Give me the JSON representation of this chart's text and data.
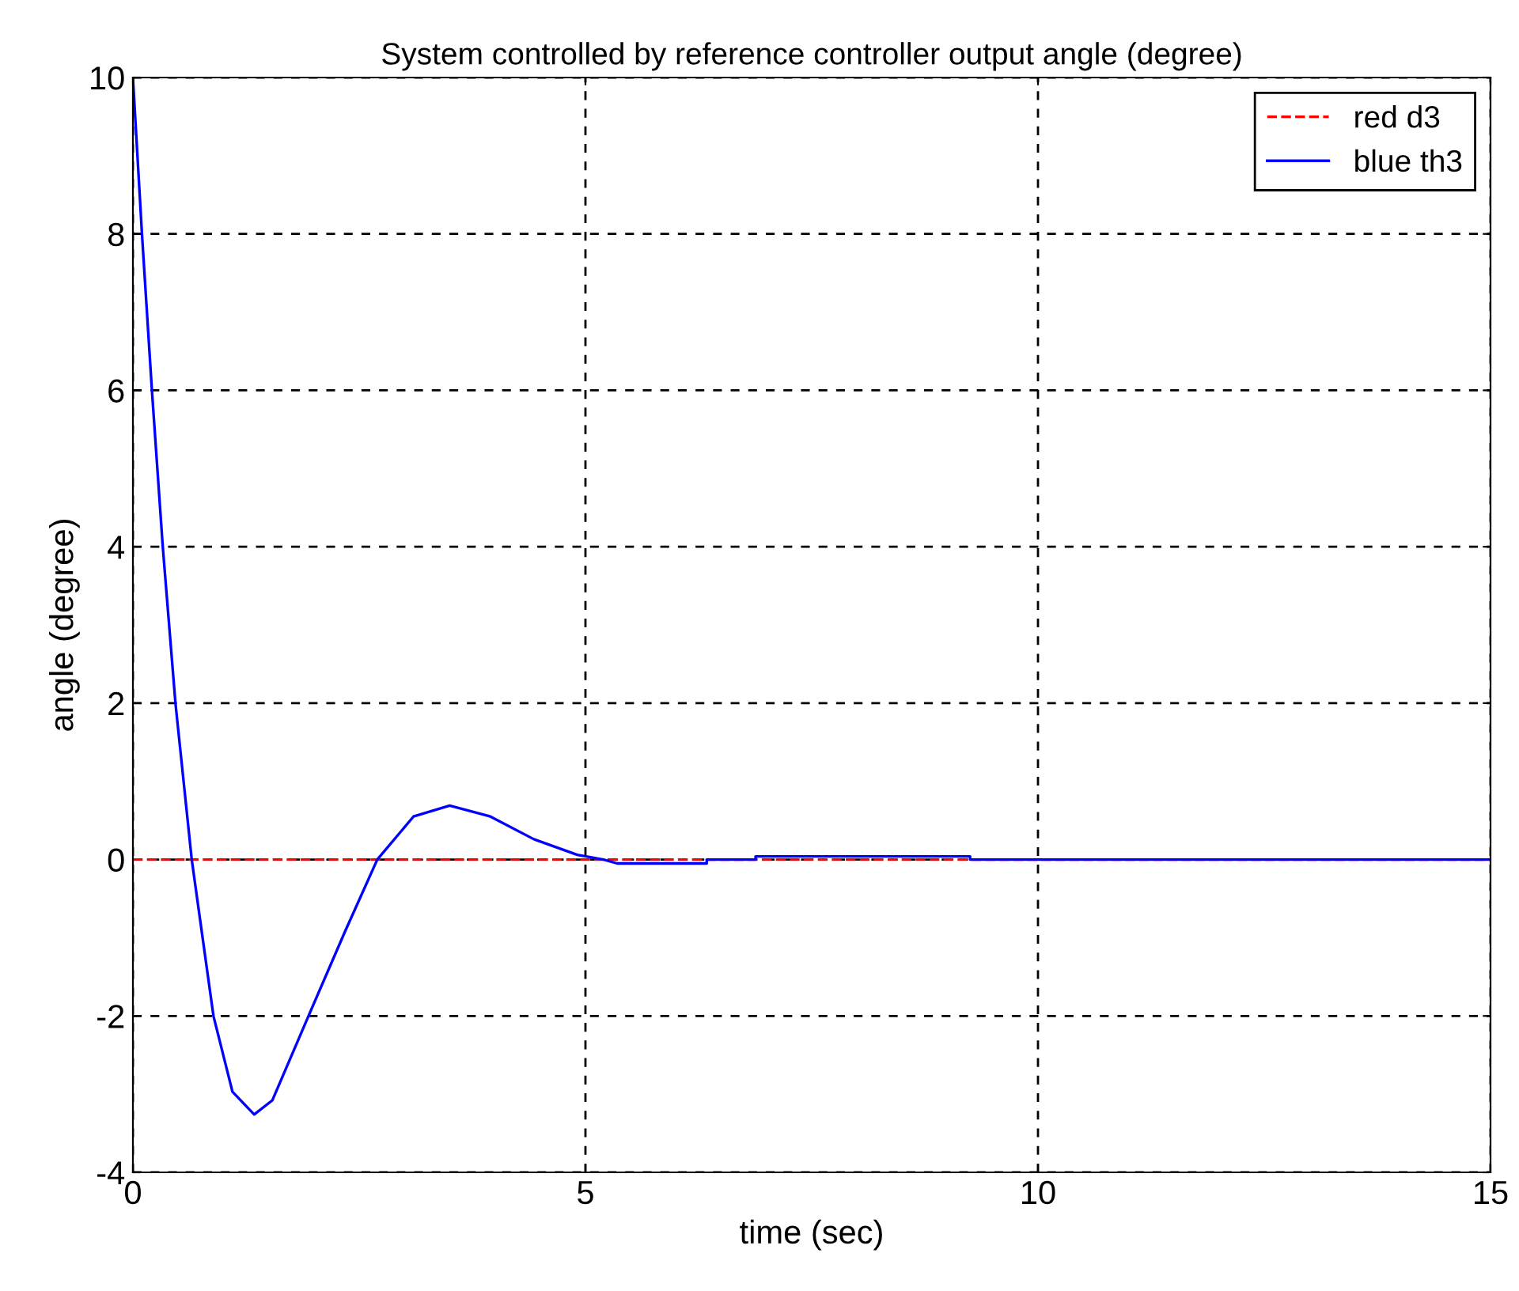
{
  "chart_data": {
    "type": "line",
    "title": "System controlled by reference controller output angle (degree)",
    "xlabel": "time (sec)",
    "ylabel": "angle (degree)",
    "xlim": [
      0,
      15
    ],
    "xticks": [
      0,
      5,
      10,
      15
    ],
    "ylim": [
      -4,
      10
    ],
    "yticks": [
      -4,
      -2,
      0,
      2,
      4,
      6,
      8,
      10
    ],
    "grid": true,
    "legend": "top right",
    "series": [
      {
        "name": "red d3",
        "color": "#ff0000",
        "line_style": "dashed",
        "x": [
          0,
          15
        ],
        "values": [
          0,
          0
        ]
      },
      {
        "name": "blue th3",
        "color": "#0000ff",
        "line_style": "solid",
        "x": [
          0,
          0.1,
          0.21,
          0.33,
          0.47,
          0.65,
          0.89,
          1.1,
          1.34,
          1.54,
          1.94,
          2.34,
          2.7,
          3.1,
          3.5,
          3.95,
          4.43,
          4.91,
          5.2,
          5.35,
          6.34,
          6.34,
          6.88,
          6.88,
          9.25,
          9.25,
          15
        ],
        "values": [
          10,
          8,
          6,
          4,
          2,
          0,
          -2,
          -2.97,
          -3.26,
          -3.08,
          -2,
          -0.93,
          0,
          0.55,
          0.69,
          0.55,
          0.26,
          0.06,
          0,
          -0.05,
          -0.05,
          0,
          0,
          0.04,
          0.04,
          0,
          0
        ]
      }
    ]
  }
}
